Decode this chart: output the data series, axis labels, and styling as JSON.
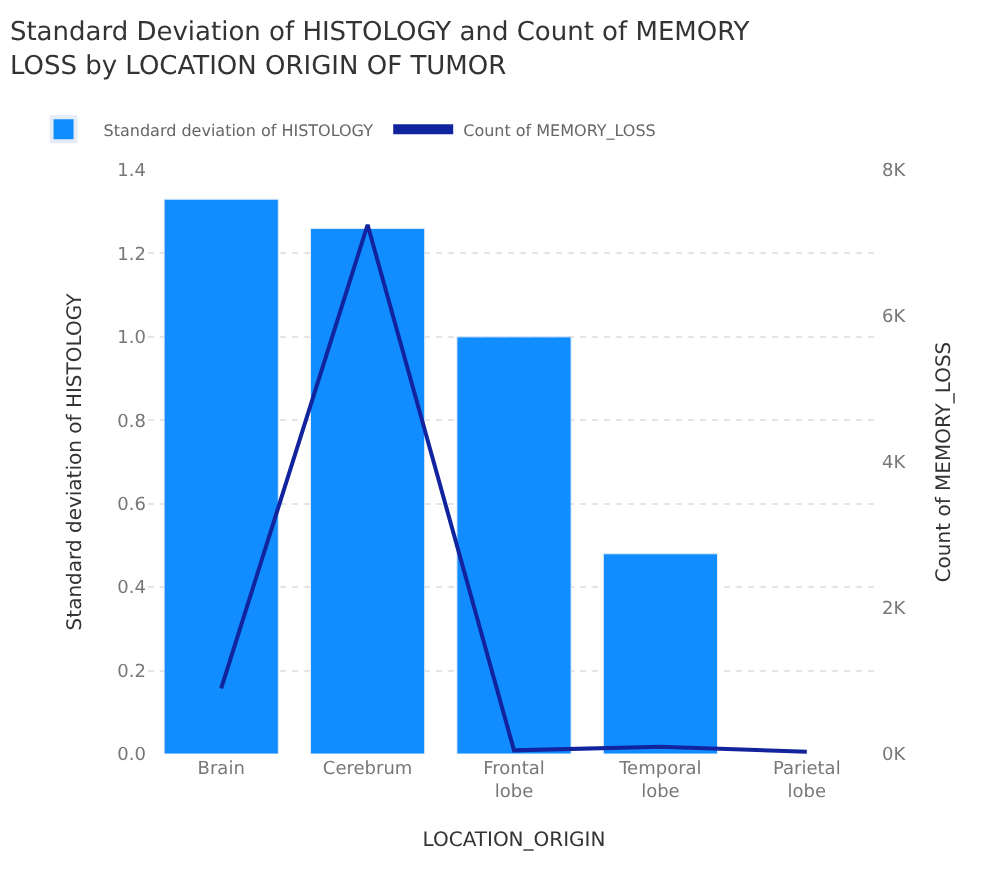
{
  "chart_data": {
    "type": "bar",
    "title": "Standard Deviation of HISTOLOGY and Count of MEMORY LOSS by LOCATION ORIGIN OF TUMOR",
    "xlabel": "LOCATION_ORIGIN",
    "ylabel": "Standard deviation of HISTOLOGY",
    "y2label": "Count of MEMORY_LOSS",
    "categories": [
      "Brain",
      "Cerebrum",
      "Frontal lobe",
      "Temporal lobe",
      "Parietal lobe"
    ],
    "series": [
      {
        "name": "Standard deviation of HISTOLOGY",
        "color": "#118dff",
        "values": [
          1.33,
          1.26,
          1.0,
          0.48,
          null
        ]
      },
      {
        "name": "Count of MEMORY_LOSS",
        "type": "line",
        "axis": "y2",
        "color": "#12239e",
        "values": [
          900,
          7250,
          50,
          100,
          30
        ]
      }
    ],
    "ylim": [
      0,
      1.4
    ],
    "yticks": [
      {
        "value": 0,
        "label": "0.0"
      },
      0.2,
      0.4,
      0.6,
      0.8,
      {
        "value": 1,
        "label": "1.0"
      },
      1.2,
      1.4
    ],
    "y2lim": [
      0,
      8000
    ],
    "y2ticks": [
      {
        "value": 0,
        "label": "0K"
      },
      {
        "value": 2000,
        "label": "2K"
      },
      {
        "value": 4000,
        "label": "4K"
      },
      {
        "value": 6000,
        "label": "6K"
      },
      {
        "value": 8000,
        "label": "8K"
      }
    ],
    "grid": "y",
    "legend": "top left",
    "marker": "none",
    "line_style": "solid"
  }
}
